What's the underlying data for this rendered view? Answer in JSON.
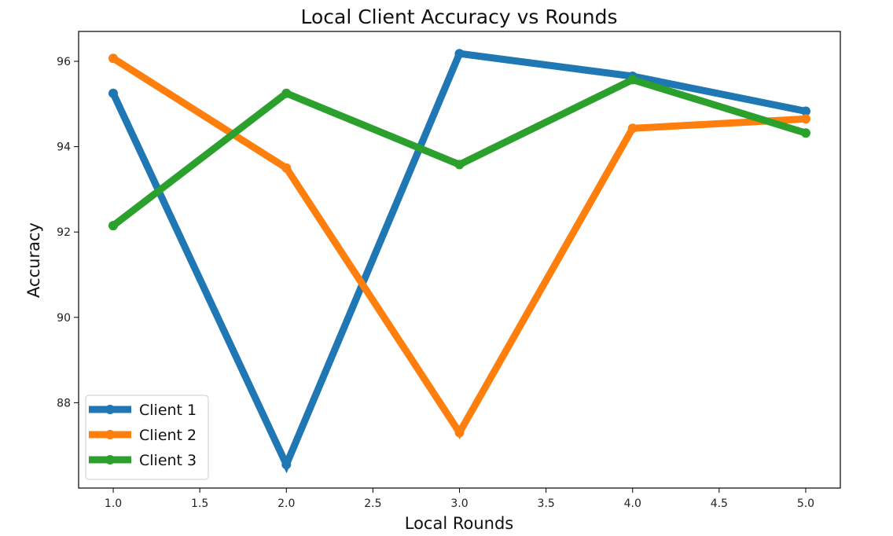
{
  "chart_data": {
    "type": "line",
    "title": "Local Client Accuracy vs Rounds",
    "xlabel": "Local Rounds",
    "ylabel": "Accuracy",
    "xlim": [
      0.8,
      5.2
    ],
    "ylim": [
      86.0,
      96.7
    ],
    "x": [
      1.0,
      2.0,
      3.0,
      4.0,
      5.0
    ],
    "x_ticks": [
      1.0,
      1.5,
      2.0,
      2.5,
      3.0,
      3.5,
      4.0,
      4.5,
      5.0
    ],
    "x_tick_labels": [
      "1.0",
      "1.5",
      "2.0",
      "2.5",
      "3.0",
      "3.5",
      "4.0",
      "4.5",
      "5.0"
    ],
    "y_ticks": [
      88,
      90,
      92,
      94,
      96
    ],
    "y_tick_labels": [
      "88",
      "90",
      "92",
      "94",
      "96"
    ],
    "grid": false,
    "legend_position": "lower-left",
    "series": [
      {
        "name": "Client 1",
        "color": "#1f77b4",
        "values": [
          95.25,
          86.55,
          96.18,
          95.65,
          94.83
        ]
      },
      {
        "name": "Client 2",
        "color": "#ff7f0e",
        "values": [
          96.07,
          93.5,
          87.3,
          94.43,
          94.65
        ]
      },
      {
        "name": "Client 3",
        "color": "#2ca02c",
        "values": [
          92.15,
          95.25,
          93.58,
          95.57,
          94.32
        ]
      }
    ]
  }
}
